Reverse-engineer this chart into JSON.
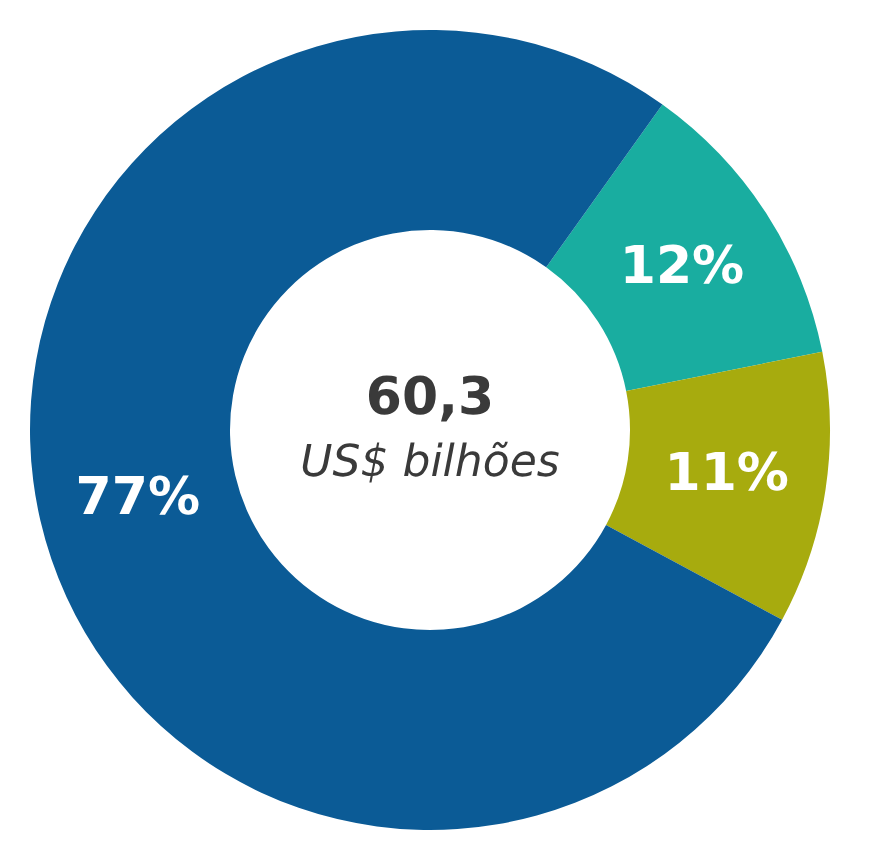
{
  "chart_data": {
    "type": "donut",
    "categories": [
      null,
      null,
      null
    ],
    "values": [
      12,
      11,
      77
    ],
    "colors": [
      "#19ada0",
      "#a7ab0e",
      "#0b5b96"
    ],
    "value_labels": [
      "12%",
      "11%",
      "77%"
    ],
    "annotations": [
      "60,3",
      "US$ bilhões"
    ],
    "legend": false
  }
}
